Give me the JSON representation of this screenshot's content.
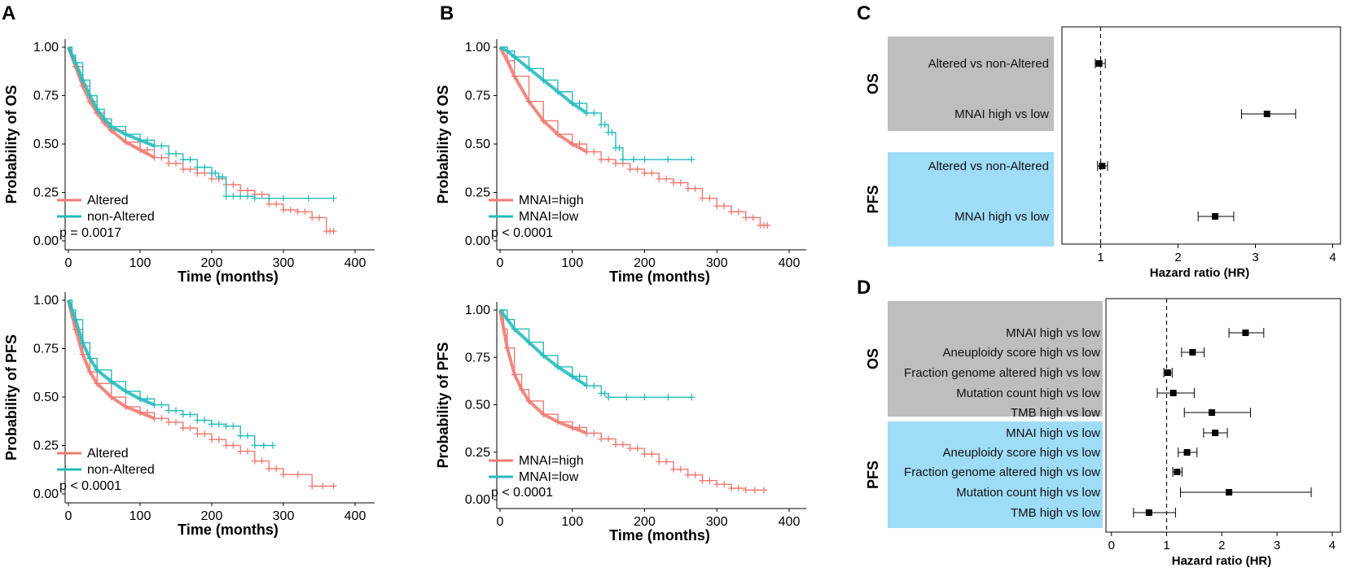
{
  "colors": {
    "altered": "#f07b72",
    "nonaltered": "#26bcbc",
    "gray_band": "#bebebe",
    "blue_band": "#9fdcf8"
  },
  "chart_data": [
    {
      "id": "A-top",
      "type": "line",
      "panel": "A",
      "ylabel": "Probability of OS",
      "xlabel": "Time (months)",
      "xlim": [
        0,
        400
      ],
      "ylim": [
        0,
        1
      ],
      "xticks": [
        "0",
        "100",
        "200",
        "300",
        "400"
      ],
      "yticks": [
        "0.00",
        "0.25",
        "0.50",
        "0.75",
        "1.00"
      ],
      "pvalue": "p = 0.0017",
      "legend": [
        "Altered",
        "non-Altered"
      ],
      "series": [
        {
          "name": "Altered",
          "color": "#f07b72",
          "x": [
            0,
            5,
            10,
            20,
            30,
            40,
            50,
            60,
            80,
            100,
            120,
            140,
            160,
            180,
            200,
            220,
            240,
            260,
            280,
            300,
            320,
            340,
            360,
            370
          ],
          "y": [
            1.0,
            0.95,
            0.9,
            0.8,
            0.72,
            0.66,
            0.61,
            0.57,
            0.51,
            0.47,
            0.43,
            0.4,
            0.37,
            0.35,
            0.32,
            0.29,
            0.26,
            0.24,
            0.19,
            0.16,
            0.15,
            0.12,
            0.05,
            0.05
          ]
        },
        {
          "name": "non-Altered",
          "color": "#26bcbc",
          "x": [
            0,
            5,
            10,
            20,
            30,
            40,
            50,
            60,
            80,
            100,
            120,
            140,
            160,
            180,
            200,
            210,
            220,
            240,
            260,
            300,
            370
          ],
          "y": [
            1.0,
            0.96,
            0.92,
            0.83,
            0.75,
            0.68,
            0.63,
            0.59,
            0.55,
            0.52,
            0.49,
            0.45,
            0.42,
            0.38,
            0.35,
            0.33,
            0.23,
            0.23,
            0.22,
            0.22,
            0.22
          ]
        }
      ]
    },
    {
      "id": "A-bottom",
      "type": "line",
      "panel": "A",
      "ylabel": "Probability of PFS",
      "xlabel": "Time (months)",
      "xlim": [
        0,
        400
      ],
      "ylim": [
        0,
        1
      ],
      "xticks": [
        "0",
        "100",
        "200",
        "300",
        "400"
      ],
      "yticks": [
        "0.00",
        "0.25",
        "0.50",
        "0.75",
        "1.00"
      ],
      "pvalue": "p < 0.0001",
      "legend": [
        "Altered",
        "non-Altered"
      ],
      "series": [
        {
          "name": "Altered",
          "color": "#f07b72",
          "x": [
            0,
            5,
            10,
            20,
            30,
            40,
            60,
            80,
            100,
            120,
            140,
            160,
            180,
            200,
            220,
            240,
            260,
            280,
            300,
            340,
            370
          ],
          "y": [
            1.0,
            0.92,
            0.85,
            0.72,
            0.63,
            0.57,
            0.5,
            0.45,
            0.42,
            0.39,
            0.37,
            0.34,
            0.31,
            0.28,
            0.25,
            0.22,
            0.17,
            0.13,
            0.1,
            0.04,
            0.04
          ]
        },
        {
          "name": "non-Altered",
          "color": "#26bcbc",
          "x": [
            0,
            5,
            10,
            20,
            30,
            40,
            60,
            80,
            100,
            120,
            140,
            160,
            180,
            200,
            220,
            240,
            260,
            285
          ],
          "y": [
            1.0,
            0.95,
            0.9,
            0.78,
            0.7,
            0.64,
            0.58,
            0.53,
            0.49,
            0.46,
            0.43,
            0.41,
            0.38,
            0.36,
            0.35,
            0.3,
            0.25,
            0.25
          ]
        }
      ]
    },
    {
      "id": "B-top",
      "type": "line",
      "panel": "B",
      "ylabel": "Probability of OS",
      "xlabel": "Time (months)",
      "xlim": [
        0,
        400
      ],
      "ylim": [
        0,
        1
      ],
      "xticks": [
        "0",
        "100",
        "200",
        "300",
        "400"
      ],
      "yticks": [
        "0.00",
        "0.25",
        "0.50",
        "0.75",
        "1.00"
      ],
      "pvalue": "p < 0.0001",
      "legend": [
        "MNAI=high",
        "MNAI=low"
      ],
      "series": [
        {
          "name": "MNAI=high",
          "color": "#f07b72",
          "x": [
            0,
            10,
            20,
            40,
            60,
            80,
            100,
            120,
            140,
            160,
            180,
            200,
            220,
            240,
            260,
            280,
            300,
            320,
            340,
            360,
            370
          ],
          "y": [
            1.0,
            0.93,
            0.85,
            0.72,
            0.62,
            0.55,
            0.5,
            0.46,
            0.42,
            0.4,
            0.37,
            0.35,
            0.32,
            0.3,
            0.27,
            0.22,
            0.18,
            0.15,
            0.12,
            0.08,
            0.08
          ]
        },
        {
          "name": "MNAI=low",
          "color": "#26bcbc",
          "x": [
            0,
            10,
            20,
            40,
            60,
            80,
            100,
            120,
            140,
            150,
            160,
            170,
            200,
            265
          ],
          "y": [
            1.0,
            0.98,
            0.95,
            0.89,
            0.83,
            0.77,
            0.71,
            0.66,
            0.6,
            0.56,
            0.48,
            0.42,
            0.42,
            0.42
          ]
        }
      ]
    },
    {
      "id": "B-bottom",
      "type": "line",
      "panel": "B",
      "ylabel": "Probability of PFS",
      "xlabel": "Time (months)",
      "xlim": [
        0,
        400
      ],
      "ylim": [
        0,
        1
      ],
      "xticks": [
        "0",
        "100",
        "200",
        "300",
        "400"
      ],
      "yticks": [
        "0.00",
        "0.25",
        "0.50",
        "0.75",
        "1.00"
      ],
      "pvalue": "p < 0.0001",
      "legend": [
        "MNAI=high",
        "MNAI=low"
      ],
      "series": [
        {
          "name": "MNAI=high",
          "color": "#f07b72",
          "x": [
            0,
            5,
            10,
            20,
            30,
            40,
            60,
            80,
            100,
            120,
            140,
            160,
            180,
            200,
            220,
            240,
            260,
            280,
            300,
            320,
            340,
            365
          ],
          "y": [
            1.0,
            0.9,
            0.8,
            0.66,
            0.58,
            0.52,
            0.45,
            0.41,
            0.38,
            0.35,
            0.32,
            0.29,
            0.27,
            0.24,
            0.2,
            0.16,
            0.13,
            0.1,
            0.08,
            0.06,
            0.05,
            0.05
          ]
        },
        {
          "name": "MNAI=low",
          "color": "#26bcbc",
          "x": [
            0,
            10,
            20,
            40,
            60,
            80,
            100,
            120,
            140,
            150,
            200,
            265
          ],
          "y": [
            1.0,
            0.95,
            0.9,
            0.83,
            0.76,
            0.7,
            0.65,
            0.6,
            0.56,
            0.54,
            0.54,
            0.54
          ]
        }
      ]
    },
    {
      "id": "C",
      "type": "forest",
      "panel": "C",
      "xlabel": "Hazard ratio (HR)",
      "xlim": [
        0.5,
        4.1
      ],
      "ref_line": 1,
      "xticks": [
        1,
        2,
        3,
        4
      ],
      "groups": [
        {
          "name": "OS",
          "band": "gray",
          "rows": [
            {
              "label": "Altered vs non-Altered",
              "hr": 0.98,
              "lo": 0.93,
              "hi": 1.06
            },
            {
              "label": "MNAI high vs low",
              "hr": 3.15,
              "lo": 2.82,
              "hi": 3.52
            }
          ]
        },
        {
          "name": "PFS",
          "band": "blue",
          "rows": [
            {
              "label": "Altered vs non-Altered",
              "hr": 1.02,
              "lo": 0.96,
              "hi": 1.09
            },
            {
              "label": "MNAI high vs low",
              "hr": 2.48,
              "lo": 2.26,
              "hi": 2.72
            }
          ]
        }
      ]
    },
    {
      "id": "D",
      "type": "forest",
      "panel": "D",
      "xlabel": "Hazard ratio (HR)",
      "xlim": [
        -0.1,
        4.15
      ],
      "ref_line": 1,
      "xticks": [
        0,
        1,
        2,
        3,
        4
      ],
      "groups": [
        {
          "name": "OS",
          "band": "gray",
          "rows": [
            {
              "label": "MNAI high vs low",
              "hr": 2.43,
              "lo": 2.13,
              "hi": 2.76
            },
            {
              "label": "Aneuploidy score high vs low",
              "hr": 1.47,
              "lo": 1.27,
              "hi": 1.68
            },
            {
              "label": "Fraction genome altered high vs low",
              "hr": 1.02,
              "lo": 0.95,
              "hi": 1.1
            },
            {
              "label": "Mutation count high vs low",
              "hr": 1.12,
              "lo": 0.83,
              "hi": 1.5
            },
            {
              "label": "TMB high vs low",
              "hr": 1.82,
              "lo": 1.32,
              "hi": 2.52
            }
          ]
        },
        {
          "name": "PFS",
          "band": "blue",
          "rows": [
            {
              "label": "MNAI high vs low",
              "hr": 1.88,
              "lo": 1.67,
              "hi": 2.1
            },
            {
              "label": "Aneuploidy score high vs low",
              "hr": 1.37,
              "lo": 1.21,
              "hi": 1.55
            },
            {
              "label": "Fraction genome altered high vs low",
              "hr": 1.19,
              "lo": 1.11,
              "hi": 1.28
            },
            {
              "label": "Mutation count high vs low",
              "hr": 2.13,
              "lo": 1.25,
              "hi": 3.62
            },
            {
              "label": "TMB high vs low",
              "hr": 0.68,
              "lo": 0.4,
              "hi": 1.16
            }
          ]
        }
      ]
    }
  ],
  "panel_letters": [
    "A",
    "B",
    "C",
    "D"
  ]
}
